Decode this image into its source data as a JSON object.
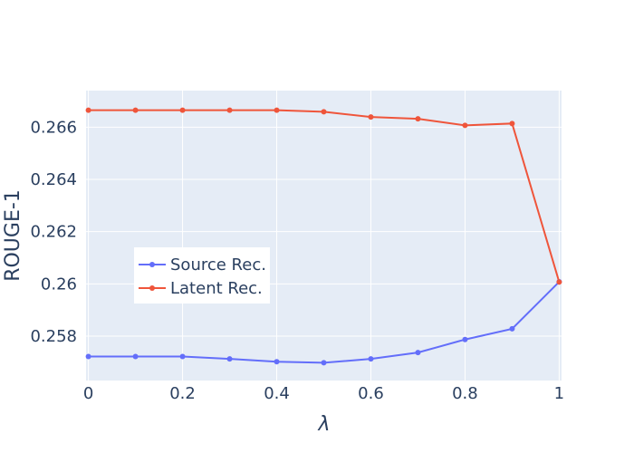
{
  "chart_data": {
    "type": "line",
    "xlabel": "λ",
    "ylabel": "ROUGE-1",
    "xlim": [
      -0.005,
      1.005
    ],
    "ylim": [
      0.2563,
      0.2674
    ],
    "x_ticks": [
      0,
      0.2,
      0.4,
      0.6,
      0.8,
      1
    ],
    "x_tick_labels": [
      "0",
      "0.2",
      "0.4",
      "0.6",
      "0.8",
      "1"
    ],
    "y_ticks": [
      0.258,
      0.26,
      0.262,
      0.264,
      0.266
    ],
    "y_tick_labels": [
      "0.258",
      "0.26",
      "0.262",
      "0.264",
      "0.266"
    ],
    "grid": true,
    "legend_placement": "middle-left",
    "x": [
      0,
      0.1,
      0.2,
      0.3,
      0.4,
      0.5,
      0.6,
      0.7,
      0.8,
      0.9,
      1.0
    ],
    "series": [
      {
        "name": "Source Rec.",
        "color": "#636efa",
        "values": [
          0.25722,
          0.25722,
          0.25722,
          0.25713,
          0.25702,
          0.25698,
          0.25713,
          0.25737,
          0.25787,
          0.25828,
          0.26008
        ]
      },
      {
        "name": "Latent Rec.",
        "color": "#ef553b",
        "values": [
          0.26665,
          0.26665,
          0.26665,
          0.26665,
          0.26665,
          0.26659,
          0.26639,
          0.26632,
          0.26607,
          0.26614,
          0.26007
        ]
      }
    ]
  }
}
